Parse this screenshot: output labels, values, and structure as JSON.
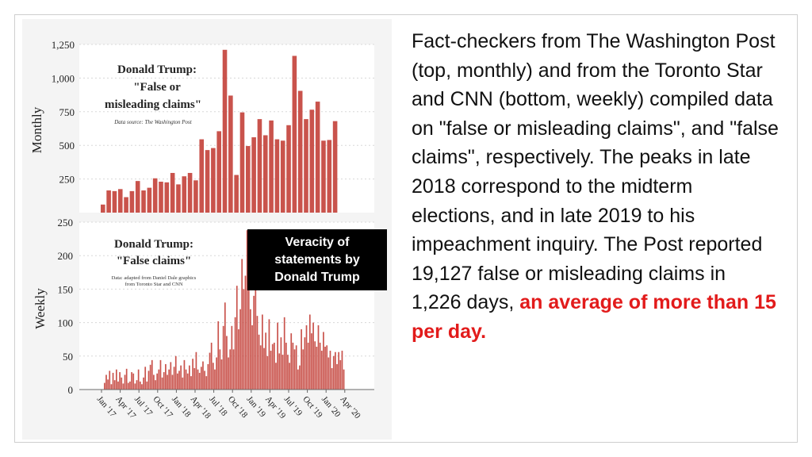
{
  "caption": "Veracity of statements by Donald Trump",
  "body_text": "Fact-checkers from The Washington Post (top, monthly) and from the Toronto Star and CNN (bottom, weekly) compiled data on \"false or misleading claims\", and \"false claims\", respectively. The peaks in late 2018 correspond to the midterm elections, and in late 2019 to his impeachment inquiry. The Post reported 19,127 false or misleading claims in 1,226 days,",
  "highlight_text": "an average of more than 15 per day.",
  "colors": {
    "bar": "#c9534c",
    "panel": "#f4f4f4",
    "highlight": "#e21b1b"
  },
  "chart_data": [
    {
      "type": "bar",
      "title_lines": [
        "Donald Trump:",
        "\"False or",
        "misleading claims\""
      ],
      "source": "Data source: The Washington Post",
      "ylabel": "Monthly",
      "ylim": [
        0,
        1250
      ],
      "yticks": [
        250,
        500,
        750,
        "1,000",
        "1,250"
      ],
      "values": [
        60,
        165,
        160,
        175,
        115,
        160,
        235,
        165,
        185,
        255,
        230,
        225,
        295,
        210,
        270,
        295,
        240,
        545,
        465,
        480,
        605,
        1210,
        870,
        280,
        745,
        495,
        560,
        695,
        575,
        685,
        545,
        535,
        650,
        1165,
        905,
        695,
        765,
        825,
        535,
        540,
        680
      ]
    },
    {
      "type": "bar",
      "title_lines": [
        "Donald Trump:",
        "\"False claims\""
      ],
      "source_lines": [
        "Data: adapted from Daniel Dale graphics",
        "from Toronto Star and CNN"
      ],
      "ylabel": "Weekly",
      "ylim": [
        0,
        250
      ],
      "yticks": [
        0,
        50,
        100,
        150,
        200,
        250
      ],
      "xticks": [
        "Jan '17",
        "Apr '17",
        "Jul '17",
        "Oct '17",
        "Jan '18",
        "Apr '18",
        "Jul '18",
        "Oct '18",
        "Jan '19",
        "Apr '19",
        "Jul '19",
        "Oct '19",
        "Jan '20",
        "Apr '20"
      ],
      "values": [
        10,
        22,
        15,
        28,
        8,
        25,
        14,
        30,
        12,
        26,
        18,
        9,
        22,
        31,
        10,
        12,
        26,
        24,
        9,
        14,
        30,
        12,
        8,
        18,
        34,
        12,
        28,
        37,
        44,
        22,
        14,
        24,
        30,
        44,
        18,
        26,
        38,
        22,
        30,
        41,
        22,
        34,
        50,
        24,
        28,
        36,
        18,
        44,
        30,
        24,
        36,
        20,
        46,
        32,
        56,
        30,
        25,
        34,
        42,
        28,
        20,
        38,
        55,
        70,
        40,
        30,
        48,
        102,
        60,
        45,
        95,
        130,
        80,
        48,
        60,
        95,
        60,
        108,
        155,
        90,
        120,
        195,
        150,
        170,
        238,
        210,
        120,
        96,
        140,
        190,
        110,
        82,
        66,
        112,
        62,
        85,
        50,
        105,
        58,
        68,
        70,
        40,
        100,
        54,
        78,
        52,
        108,
        70,
        52,
        40,
        84,
        70,
        60,
        66,
        30,
        36,
        90,
        60,
        78,
        96,
        70,
        112,
        84,
        100,
        72,
        64,
        96,
        70,
        58,
        86,
        64,
        66,
        48,
        58,
        32,
        50,
        56,
        38,
        56,
        44,
        58,
        30
      ]
    }
  ]
}
